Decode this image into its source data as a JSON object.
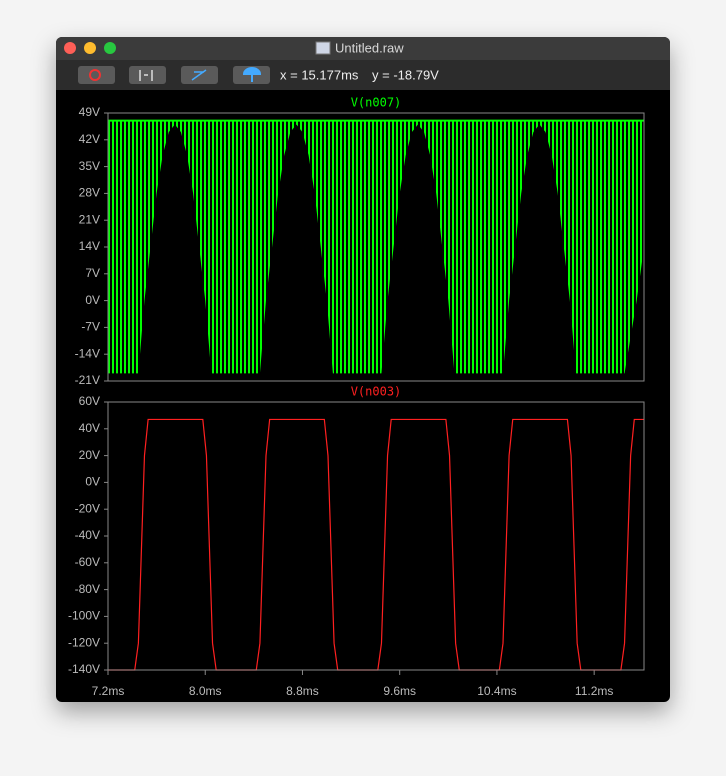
{
  "window": {
    "title": "Untitled.raw",
    "cursor_x": "x = 15.177ms",
    "cursor_y": "y = -18.79V"
  },
  "chart_data": [
    {
      "type": "band",
      "x": [
        7.2,
        7.45,
        7.5,
        7.55,
        7.6,
        7.65,
        7.7,
        7.75,
        7.8,
        7.85,
        7.9,
        7.95,
        8.0,
        8.05,
        8.45,
        8.5,
        8.55,
        8.6,
        8.65,
        8.7,
        8.75,
        8.8,
        8.85,
        8.9,
        8.95,
        9.0,
        9.05,
        9.45,
        9.5,
        9.55,
        9.6,
        9.65,
        9.7,
        9.75,
        9.8,
        9.85,
        9.9,
        9.95,
        10.0,
        10.05,
        10.45,
        10.5,
        10.55,
        10.6,
        10.65,
        10.7,
        10.75,
        10.8,
        10.85,
        10.9,
        10.95,
        11.0,
        11.05,
        11.45,
        11.55,
        11.61
      ],
      "series": [
        {
          "name": "V(n007)",
          "color": "#00ff00",
          "top": 47,
          "values": [
            -19,
            -19,
            0,
            14,
            28,
            38,
            44,
            46,
            44,
            38,
            28,
            14,
            0,
            -19,
            -19,
            0,
            14,
            28,
            38,
            44,
            46,
            44,
            38,
            28,
            14,
            0,
            -19,
            -19,
            0,
            14,
            28,
            38,
            44,
            46,
            44,
            38,
            28,
            14,
            0,
            -19,
            -19,
            0,
            14,
            28,
            38,
            44,
            46,
            44,
            38,
            28,
            14,
            0,
            -19,
            -19,
            0,
            14
          ]
        }
      ],
      "xlim": [
        7.2,
        11.61
      ],
      "ylim": [
        -21,
        49
      ],
      "yticks": [
        {
          "value": 49,
          "label": "49V"
        },
        {
          "value": 42,
          "label": "42V"
        },
        {
          "value": 35,
          "label": "35V"
        },
        {
          "value": 28,
          "label": "28V"
        },
        {
          "value": 21,
          "label": "21V"
        },
        {
          "value": 14,
          "label": "14V"
        },
        {
          "value": 7,
          "label": "7V"
        },
        {
          "value": 0,
          "label": "0V"
        },
        {
          "value": -7,
          "label": "-7V"
        },
        {
          "value": -14,
          "label": "-14V"
        },
        {
          "value": -21,
          "label": "-21V"
        }
      ],
      "grid": false
    },
    {
      "type": "line",
      "x": [
        7.2,
        7.42,
        7.45,
        7.5,
        7.53,
        7.98,
        8.01,
        8.06,
        8.09,
        8.42,
        8.45,
        8.5,
        8.53,
        8.98,
        9.01,
        9.06,
        9.09,
        9.42,
        9.45,
        9.5,
        9.53,
        9.98,
        10.01,
        10.06,
        10.09,
        10.42,
        10.45,
        10.5,
        10.53,
        10.98,
        11.01,
        11.06,
        11.09,
        11.42,
        11.45,
        11.5,
        11.53,
        11.61
      ],
      "series": [
        {
          "name": "V(n003)",
          "color": "#ff2020",
          "values": [
            -140,
            -140,
            -120,
            20,
            47,
            47,
            20,
            -120,
            -140,
            -140,
            -120,
            20,
            47,
            47,
            20,
            -120,
            -140,
            -140,
            -120,
            20,
            47,
            47,
            20,
            -120,
            -140,
            -140,
            -120,
            20,
            47,
            47,
            20,
            -120,
            -140,
            -140,
            -120,
            20,
            47,
            47
          ]
        }
      ],
      "xlim": [
        7.2,
        11.61
      ],
      "ylim": [
        -140,
        60
      ],
      "xticks": [
        {
          "value": 7.2,
          "label": "7.2ms"
        },
        {
          "value": 8.0,
          "label": "8.0ms"
        },
        {
          "value": 8.8,
          "label": "8.8ms"
        },
        {
          "value": 9.6,
          "label": "9.6ms"
        },
        {
          "value": 10.4,
          "label": "10.4ms"
        },
        {
          "value": 11.2,
          "label": "11.2ms"
        }
      ],
      "yticks": [
        {
          "value": 60,
          "label": "60V"
        },
        {
          "value": 40,
          "label": "40V"
        },
        {
          "value": 20,
          "label": "20V"
        },
        {
          "value": 0,
          "label": "0V"
        },
        {
          "value": -20,
          "label": "-20V"
        },
        {
          "value": -40,
          "label": "-40V"
        },
        {
          "value": -60,
          "label": "-60V"
        },
        {
          "value": -80,
          "label": "-80V"
        },
        {
          "value": -100,
          "label": "-100V"
        },
        {
          "value": -120,
          "label": "-120V"
        },
        {
          "value": -140,
          "label": "-140V"
        }
      ],
      "grid": false
    }
  ]
}
